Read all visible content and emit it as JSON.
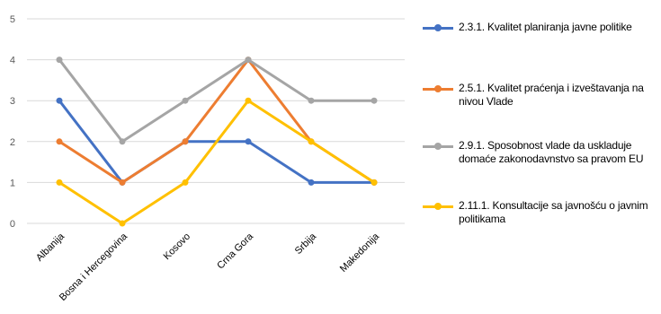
{
  "chart_data": {
    "type": "line",
    "categories": [
      "Albanija",
      "Bosna i Hercegovina",
      "Kosovo",
      "Crna Gora",
      "Srbija",
      "Makedonija"
    ],
    "ylim": [
      0,
      5
    ],
    "yticks": [
      0,
      1,
      2,
      3,
      4,
      5
    ],
    "grid": true,
    "legend_position": "right",
    "series": [
      {
        "name": "2.3.1. Kvalitet planiranja javne politike",
        "color": "#4472C4",
        "values": [
          3,
          1,
          2,
          2,
          1,
          1
        ]
      },
      {
        "name": "2.5.1. Kvalitet praćenja i izveštavanja na nivou Vlade",
        "color": "#ED7D31",
        "values": [
          2,
          1,
          2,
          4,
          2,
          1
        ]
      },
      {
        "name": "2.9.1. Sposobnost vlade da uskladuje domaće zakonodavnstvo sa pravom EU",
        "color": "#A5A5A5",
        "values": [
          4,
          2,
          3,
          4,
          3,
          3
        ]
      },
      {
        "name": "2.11.1. Konsultacije sa javnošću o javnim politikama",
        "color": "#FFC000",
        "values": [
          1,
          0,
          1,
          3,
          2,
          1
        ]
      }
    ]
  }
}
